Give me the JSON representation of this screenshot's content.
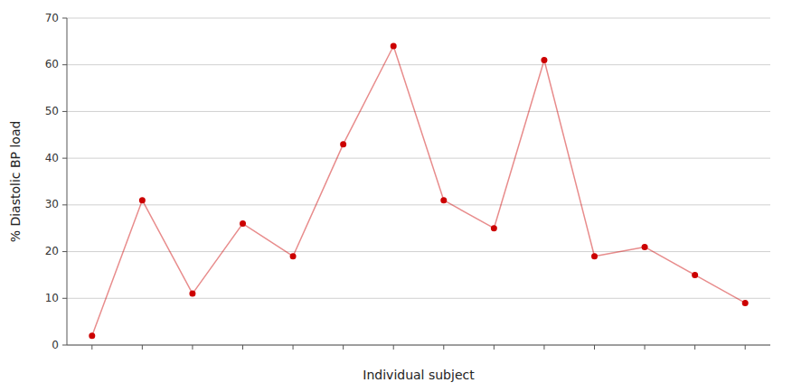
{
  "chart_data": {
    "type": "line",
    "x": [
      1,
      2,
      3,
      4,
      5,
      6,
      7,
      8,
      9,
      10,
      11,
      12,
      13,
      14
    ],
    "values": [
      2,
      31,
      11,
      26,
      19,
      43,
      64,
      31,
      25,
      61,
      19,
      21,
      15,
      9
    ],
    "color": "#CC0000",
    "marker": "circle",
    "xlabel": "Individual subject",
    "ylabel": "% Diastolic BP load",
    "xlim": [
      0.5,
      14.5
    ],
    "xticks": [
      1,
      2,
      3,
      4,
      5,
      6,
      7,
      8,
      9,
      10,
      11,
      12,
      13,
      14
    ],
    "ylim": [
      0,
      70
    ],
    "yticks": [
      0,
      10,
      20,
      30,
      40,
      50,
      60,
      70
    ],
    "grid": true,
    "tick_labels": "y"
  }
}
